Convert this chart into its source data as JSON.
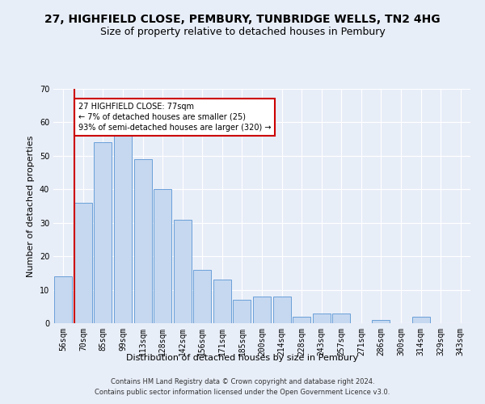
{
  "title1": "27, HIGHFIELD CLOSE, PEMBURY, TUNBRIDGE WELLS, TN2 4HG",
  "title2": "Size of property relative to detached houses in Pembury",
  "xlabel": "Distribution of detached houses by size in Pembury",
  "ylabel": "Number of detached properties",
  "categories": [
    "56sqm",
    "70sqm",
    "85sqm",
    "99sqm",
    "113sqm",
    "128sqm",
    "142sqm",
    "156sqm",
    "171sqm",
    "185sqm",
    "200sqm",
    "214sqm",
    "228sqm",
    "243sqm",
    "257sqm",
    "271sqm",
    "286sqm",
    "300sqm",
    "314sqm",
    "329sqm",
    "343sqm"
  ],
  "values": [
    14,
    36,
    54,
    57,
    49,
    40,
    31,
    16,
    13,
    7,
    8,
    8,
    2,
    3,
    3,
    0,
    1,
    0,
    2,
    0,
    0
  ],
  "bar_color": "#c5d8f0",
  "bar_edge_color": "#6a9fd8",
  "annotation_text": "27 HIGHFIELD CLOSE: 77sqm\n← 7% of detached houses are smaller (25)\n93% of semi-detached houses are larger (320) →",
  "annotation_box_color": "#ffffff",
  "annotation_box_edge_color": "#cc0000",
  "red_line_color": "#cc0000",
  "ylim": [
    0,
    70
  ],
  "yticks": [
    0,
    10,
    20,
    30,
    40,
    50,
    60,
    70
  ],
  "footer1": "Contains HM Land Registry data © Crown copyright and database right 2024.",
  "footer2": "Contains public sector information licensed under the Open Government Licence v3.0.",
  "background_color": "#e8eef8",
  "grid_color": "#ffffff",
  "title_fontsize": 10,
  "subtitle_fontsize": 9,
  "axis_label_fontsize": 8,
  "tick_fontsize": 7,
  "footer_fontsize": 6,
  "ylabel_fontsize": 8
}
